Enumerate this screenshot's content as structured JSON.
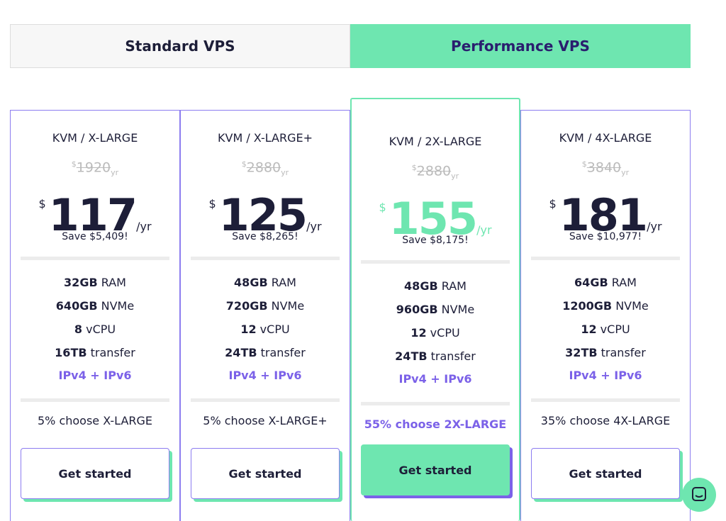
{
  "tabs": [
    "Standard VPS",
    "Performance VPS"
  ],
  "active_tab": 1,
  "featured_plan": 2,
  "plans": [
    {
      "name": "KVM / X-LARGE",
      "old_currency": "$",
      "old_price": 1920,
      "old_unit": "yr",
      "currency": "$",
      "price": 117,
      "unit": "/yr",
      "save": "Save $5,409!",
      "specs": [
        {
          "value": "32GB",
          "label": "RAM"
        },
        {
          "value": "640GB",
          "label": "NVMe"
        },
        {
          "value": "8",
          "label": "vCPU"
        },
        {
          "value": "16TB",
          "label": "transfer"
        }
      ],
      "network": "IPv4 + IPv6",
      "popularity": "5% choose X-LARGE",
      "button": "Get started"
    },
    {
      "name": "KVM / X-LARGE+",
      "old_currency": "$",
      "old_price": 2880,
      "old_unit": "yr",
      "currency": "$",
      "price": 125,
      "unit": "/yr",
      "save": "Save $8,265!",
      "specs": [
        {
          "value": "48GB",
          "label": "RAM"
        },
        {
          "value": "720GB",
          "label": "NVMe"
        },
        {
          "value": "12",
          "label": "vCPU"
        },
        {
          "value": "24TB",
          "label": "transfer"
        }
      ],
      "network": "IPv4 + IPv6",
      "popularity": "5% choose X-LARGE+",
      "button": "Get started"
    },
    {
      "name": "KVM / 2X-LARGE",
      "old_currency": "$",
      "old_price": 2880,
      "old_unit": "yr",
      "currency": "$",
      "price": 155,
      "unit": "/yr",
      "save": "Save $8,175!",
      "specs": [
        {
          "value": "48GB",
          "label": "RAM"
        },
        {
          "value": "960GB",
          "label": "NVMe"
        },
        {
          "value": "12",
          "label": "vCPU"
        },
        {
          "value": "24TB",
          "label": "transfer"
        }
      ],
      "network": "IPv4 + IPv6",
      "popularity": "55% choose 2X-LARGE",
      "button": "Get started"
    },
    {
      "name": "KVM / 4X-LARGE",
      "old_currency": "$",
      "old_price": 3840,
      "old_unit": "yr",
      "currency": "$",
      "price": 181,
      "unit": "/yr",
      "save": "Save $10,977!",
      "specs": [
        {
          "value": "64GB",
          "label": "RAM"
        },
        {
          "value": "1200GB",
          "label": "NVMe"
        },
        {
          "value": "12",
          "label": "vCPU"
        },
        {
          "value": "32TB",
          "label": "transfer"
        }
      ],
      "network": "IPv4 + IPv6",
      "popularity": "35% choose 4X-LARGE",
      "button": "Get started"
    }
  ]
}
